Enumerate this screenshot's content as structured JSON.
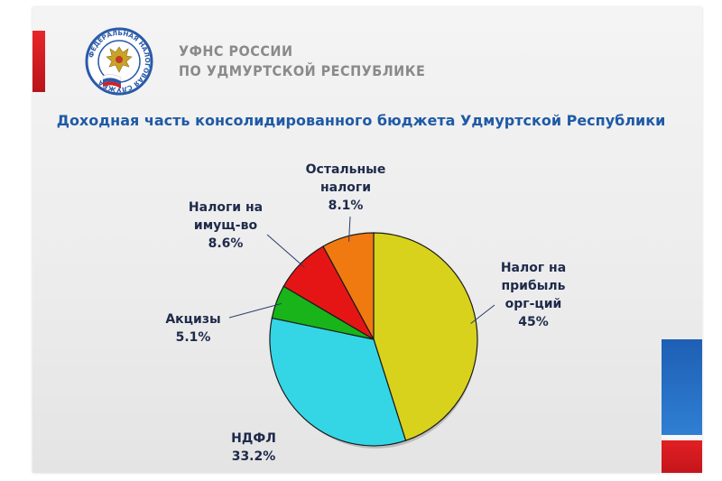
{
  "header": {
    "org_line1": "УФНС РОССИИ",
    "org_line2": "ПО УДМУРТСКОЙ РЕСПУБЛИКЕ",
    "logo_ring_text": "ФЕДЕРАЛЬНАЯ НАЛОГОВАЯ СЛУЖБА"
  },
  "chart_data": {
    "type": "pie",
    "title": "Доходная часть консолидированного бюджета Удмуртской Республики",
    "start_angle_deg": 0,
    "direction": "clockwise",
    "slices": [
      {
        "label_lines": [
          "Налог на",
          "прибыль",
          "орг-ций"
        ],
        "value": 45,
        "value_label": "45%",
        "color": "#d8d21c"
      },
      {
        "label_lines": [
          "НДФЛ"
        ],
        "value": 33.2,
        "value_label": "33.2%",
        "color": "#34d6e6"
      },
      {
        "label_lines": [
          "Акцизы"
        ],
        "value": 5.1,
        "value_label": "5.1%",
        "color": "#19b419"
      },
      {
        "label_lines": [
          "Налоги на",
          "имущ-во"
        ],
        "value": 8.6,
        "value_label": "8.6%",
        "color": "#e61515"
      },
      {
        "label_lines": [
          "Остальные",
          "налоги"
        ],
        "value": 8.1,
        "value_label": "8.1%",
        "color": "#f07a10"
      }
    ]
  }
}
